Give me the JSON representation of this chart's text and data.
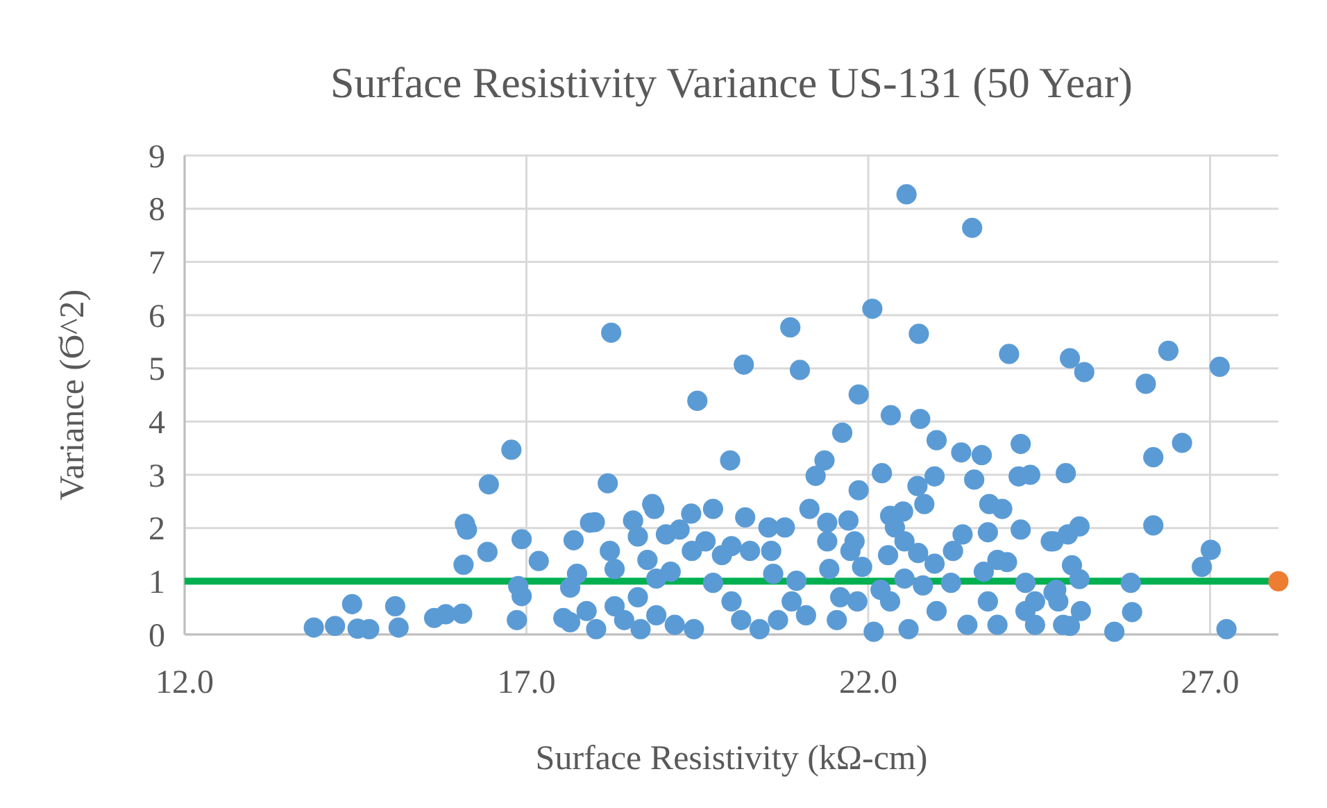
{
  "chart_data": {
    "type": "scatter",
    "title": "Surface Resistivity Variance US-131 (50 Year)",
    "xlabel": "Surface Resistivity (kΩ-cm)",
    "ylabel": "Variance (Ϭ^2)",
    "xlim": [
      12,
      28
    ],
    "xticks": [
      {
        "value": 12,
        "label": "12.0"
      },
      {
        "value": 17,
        "label": "17.0"
      },
      {
        "value": 22,
        "label": "22.0"
      },
      {
        "value": 27,
        "label": "27.0"
      }
    ],
    "ylim": [
      0,
      9
    ],
    "yticks": [
      0,
      1,
      2,
      3,
      4,
      5,
      6,
      7,
      8,
      9
    ],
    "grid": true,
    "marker": "circle",
    "ref_lines": [
      {
        "axis": "y",
        "value": 1,
        "color": "#00b050"
      }
    ],
    "series": [
      {
        "color": "#5b9bd5",
        "x": [
          13.89,
          14.2,
          14.45,
          14.53,
          14.7,
          15.08,
          15.13,
          15.65,
          15.82,
          16.06,
          16.08,
          16.1,
          16.13,
          16.43,
          16.45,
          16.78,
          16.86,
          16.88,
          16.93,
          16.93,
          17.18,
          18.24,
          18.19,
          17.69,
          17.74,
          17.93,
          18.0,
          17.54,
          17.64,
          17.64,
          17.88,
          18.02,
          18.22,
          18.29,
          18.56,
          18.63,
          18.84,
          18.87,
          18.77,
          18.9,
          18.63,
          18.29,
          18.43,
          18.67,
          19.04,
          19.24,
          19.11,
          18.9,
          19.17,
          19.41,
          19.5,
          19.73,
          19.42,
          19.62,
          19.45,
          19.73,
          19.86,
          20.0,
          20.2,
          19.98,
          20.18,
          20.27,
          20.0,
          20.41,
          20.54,
          20.78,
          20.58,
          20.61,
          20.14,
          20.86,
          21.0,
          21.14,
          21.23,
          21.36,
          20.95,
          20.68,
          21.09,
          20.88,
          22.56,
          23.52,
          22.06,
          22.74,
          24.06,
          21.86,
          22.33,
          22.76,
          21.62,
          23.0,
          23.36,
          23.66,
          24.23,
          22.2,
          22.97,
          23.55,
          24.2,
          24.37,
          21.86,
          22.72,
          22.82,
          22.32,
          22.51,
          23.77,
          23.96,
          21.71,
          21.4,
          22.39,
          23.38,
          23.75,
          24.23,
          24.67,
          21.8,
          21.4,
          22.53,
          21.74,
          22.29,
          22.73,
          23.24,
          23.89,
          22.97,
          21.91,
          21.43,
          24.03,
          23.69,
          22.53,
          23.21,
          24.3,
          24.71,
          22.18,
          22.8,
          21.59,
          21.84,
          22.32,
          23.0,
          23.75,
          23.89,
          23.45,
          22.59,
          22.08,
          21.54,
          24.44,
          24.44,
          24.3,
          24.85,
          24.95,
          25.16,
          26.39,
          26.06,
          27.14,
          26.59,
          26.17,
          24.89,
          25.09,
          24.92,
          24.71,
          26.17,
          27.01,
          26.88,
          24.98,
          25.09,
          25.84,
          24.75,
          24.78,
          25.11,
          25.86,
          24.95,
          25.6,
          27.24
        ],
        "values": [
          0.13,
          0.16,
          0.57,
          0.11,
          0.1,
          0.53,
          0.13,
          0.31,
          0.38,
          0.39,
          1.31,
          2.08,
          1.97,
          1.55,
          2.82,
          3.47,
          0.27,
          0.91,
          0.72,
          1.79,
          1.38,
          5.67,
          2.84,
          1.77,
          1.14,
          2.1,
          2.11,
          0.31,
          0.23,
          0.88,
          0.44,
          0.1,
          1.57,
          1.23,
          2.14,
          1.84,
          2.45,
          2.36,
          1.4,
          1.05,
          0.7,
          0.53,
          0.27,
          0.1,
          1.88,
          1.97,
          1.18,
          0.36,
          0.18,
          2.27,
          4.39,
          2.36,
          1.57,
          1.75,
          0.1,
          0.97,
          1.49,
          1.66,
          2.2,
          3.27,
          5.07,
          1.57,
          0.62,
          0.1,
          2.01,
          2.01,
          1.57,
          1.14,
          0.27,
          5.77,
          4.97,
          2.36,
          2.98,
          3.27,
          1.01,
          0.27,
          0.36,
          0.62,
          8.27,
          7.64,
          6.12,
          5.65,
          5.27,
          4.51,
          4.12,
          4.05,
          3.79,
          3.65,
          3.42,
          3.37,
          3.58,
          3.03,
          2.97,
          2.91,
          2.97,
          3.0,
          2.71,
          2.79,
          2.45,
          2.23,
          2.31,
          2.45,
          2.36,
          2.14,
          2.1,
          2.01,
          1.88,
          1.92,
          1.97,
          1.75,
          1.75,
          1.75,
          1.75,
          1.57,
          1.49,
          1.53,
          1.57,
          1.4,
          1.33,
          1.27,
          1.23,
          1.36,
          1.18,
          1.05,
          0.97,
          0.97,
          0.79,
          0.84,
          0.92,
          0.7,
          0.62,
          0.62,
          0.44,
          0.62,
          0.18,
          0.18,
          0.1,
          0.05,
          0.27,
          0.62,
          0.18,
          0.44,
          0.18,
          5.19,
          4.93,
          5.33,
          4.71,
          5.03,
          3.6,
          3.33,
          3.03,
          2.03,
          1.88,
          1.75,
          2.05,
          1.59,
          1.27,
          1.3,
          1.04,
          0.97,
          0.84,
          0.62,
          0.44,
          0.42,
          0.16,
          0.05,
          0.1
        ]
      },
      {
        "color": "#ed7d31",
        "x": [
          28
        ],
        "values": [
          1
        ]
      }
    ]
  }
}
